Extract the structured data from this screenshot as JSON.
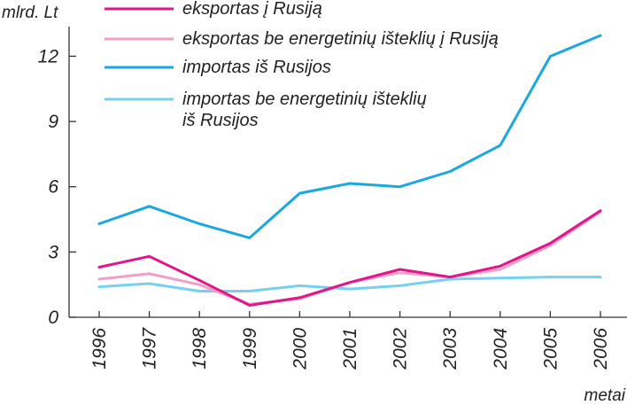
{
  "chart_data": {
    "type": "line",
    "ylabel": "mlrd. Lt",
    "xlabel": "metai",
    "categories": [
      "1996",
      "1997",
      "1998",
      "1999",
      "2000",
      "2001",
      "2002",
      "2003",
      "2004",
      "2005",
      "2006"
    ],
    "yticks": [
      0,
      3,
      6,
      9,
      12
    ],
    "ylim": [
      0,
      13.2
    ],
    "grid": false,
    "legend_position": "top",
    "series": [
      {
        "name": "eksportas į Rusiją",
        "color": "#e0168a",
        "values": [
          2.3,
          2.8,
          1.7,
          0.55,
          0.9,
          1.6,
          2.2,
          1.85,
          2.35,
          3.4,
          4.9
        ]
      },
      {
        "name": "eksportas be energetinių išteklių į Rusiją",
        "color": "#f0a0c8",
        "values": [
          1.75,
          2.0,
          1.5,
          0.6,
          0.85,
          1.6,
          2.05,
          1.85,
          2.2,
          3.3,
          4.85
        ]
      },
      {
        "name": "importas iš Rusijos",
        "color": "#1ba8dc",
        "values": [
          4.3,
          5.1,
          4.3,
          3.65,
          5.7,
          6.15,
          6.0,
          6.7,
          7.9,
          12.0,
          12.95
        ]
      },
      {
        "name": "importas be energetinių išteklių\niš Rusijos",
        "color": "#78d0f0",
        "values": [
          1.4,
          1.55,
          1.2,
          1.2,
          1.45,
          1.3,
          1.45,
          1.75,
          1.8,
          1.85,
          1.85
        ]
      }
    ]
  }
}
